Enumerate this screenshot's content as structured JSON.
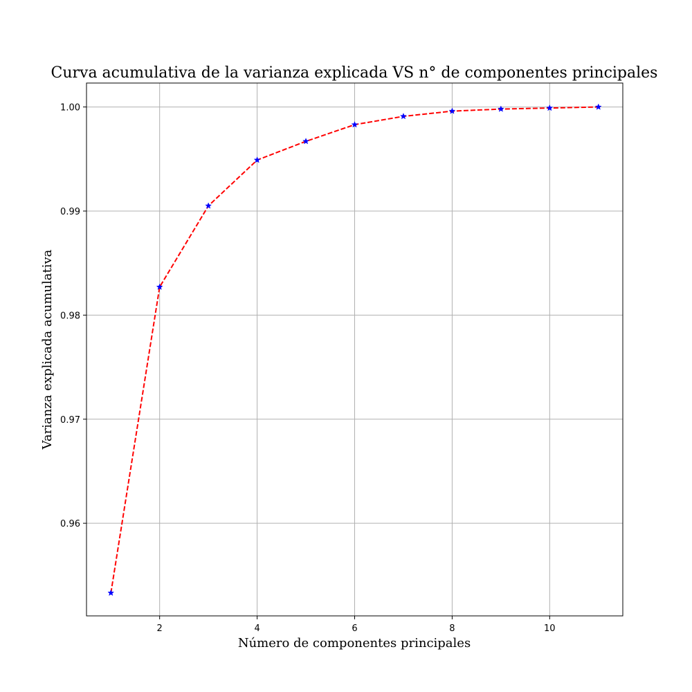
{
  "chart_data": {
    "type": "line",
    "title": "Curva acumulativa de la varianza explicada VS n° de componentes principales",
    "xlabel": "Número de componentes principales",
    "ylabel": "Varianza explicada acumulativa",
    "x": [
      1,
      2,
      3,
      4,
      5,
      6,
      7,
      8,
      9,
      10,
      11
    ],
    "series": [
      {
        "values": [
          0.9533,
          0.9827,
          0.9905,
          0.9949,
          0.9967,
          0.9983,
          0.9991,
          0.9996,
          0.9998,
          0.9999,
          1.0
        ],
        "line_color": "#ff0000",
        "line_style": "dashed",
        "marker": "star",
        "marker_color": "#0000ff"
      }
    ],
    "xlim": [
      0.5,
      11.5
    ],
    "ylim": [
      0.9511,
      1.0023
    ],
    "xticks": [
      2,
      4,
      6,
      8,
      10
    ],
    "xtick_labels": [
      "2",
      "4",
      "6",
      "8",
      "10"
    ],
    "yticks": [
      0.96,
      0.97,
      0.98,
      0.99,
      1.0
    ],
    "ytick_labels": [
      "0.96",
      "0.97",
      "0.98",
      "0.99",
      "1.00"
    ],
    "grid": true
  }
}
